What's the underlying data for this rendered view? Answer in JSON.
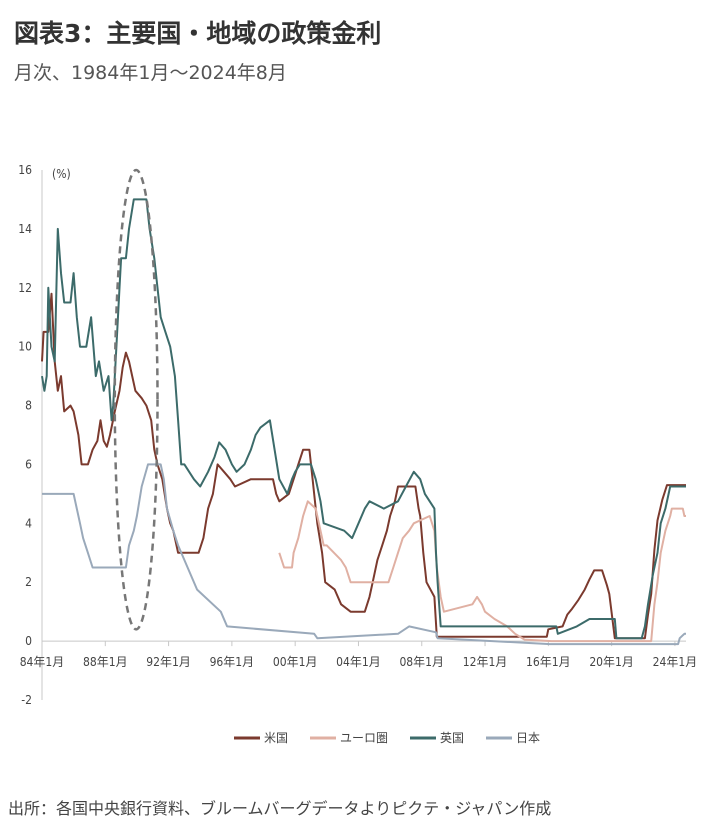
{
  "header": {
    "title": "図表3：主要国・地域の政策金利",
    "subtitle": "月次、1984年1月～2024年8月"
  },
  "footer": {
    "source": "出所：各国中央銀行資料、ブルームバーグデータよりピクテ・ジャパン作成"
  },
  "chart_data": {
    "type": "line",
    "title": "図表3：主要国・地域の政策金利",
    "subtitle": "月次、1984年1月～2024年8月",
    "ylabel": "(%)",
    "ylim": [
      -2,
      16
    ],
    "yticks": [
      -2,
      0,
      2,
      4,
      6,
      8,
      10,
      12,
      14,
      16
    ],
    "xlim": [
      1984.0,
      2024.7
    ],
    "xticks": [
      {
        "x": 1984,
        "label": "84年1月"
      },
      {
        "x": 1988,
        "label": "88年1月"
      },
      {
        "x": 1992,
        "label": "92年1月"
      },
      {
        "x": 1996,
        "label": "96年1月"
      },
      {
        "x": 2000,
        "label": "00年1月"
      },
      {
        "x": 2004,
        "label": "04年1月"
      },
      {
        "x": 2008,
        "label": "08年1月"
      },
      {
        "x": 2012,
        "label": "12年1月"
      },
      {
        "x": 2016,
        "label": "16年1月"
      },
      {
        "x": 2020,
        "label": "20年1月"
      },
      {
        "x": 2024,
        "label": "24年1月"
      }
    ],
    "grid": false,
    "legend_position": "bottom",
    "annotation": "dashed ellipse highlighting 1988-1992",
    "series": [
      {
        "name": "米国",
        "color": "#7b3a2e",
        "points": [
          [
            1984.0,
            9.5
          ],
          [
            1984.1,
            10.5
          ],
          [
            1984.4,
            10.5
          ],
          [
            1984.6,
            11.8
          ],
          [
            1984.8,
            9.5
          ],
          [
            1985.0,
            8.5
          ],
          [
            1985.2,
            9.0
          ],
          [
            1985.4,
            7.8
          ],
          [
            1985.8,
            8.0
          ],
          [
            1986.0,
            7.8
          ],
          [
            1986.3,
            7.0
          ],
          [
            1986.5,
            6.0
          ],
          [
            1986.9,
            6.0
          ],
          [
            1987.2,
            6.5
          ],
          [
            1987.5,
            6.8
          ],
          [
            1987.7,
            7.5
          ],
          [
            1987.9,
            6.8
          ],
          [
            1988.1,
            6.6
          ],
          [
            1988.3,
            7.0
          ],
          [
            1988.6,
            7.8
          ],
          [
            1988.9,
            8.5
          ],
          [
            1989.1,
            9.3
          ],
          [
            1989.3,
            9.8
          ],
          [
            1989.5,
            9.5
          ],
          [
            1989.7,
            9.0
          ],
          [
            1989.9,
            8.5
          ],
          [
            1990.3,
            8.25
          ],
          [
            1990.6,
            8.0
          ],
          [
            1990.9,
            7.5
          ],
          [
            1991.1,
            6.5
          ],
          [
            1991.3,
            6.0
          ],
          [
            1991.6,
            5.5
          ],
          [
            1991.9,
            4.5
          ],
          [
            1992.1,
            4.0
          ],
          [
            1992.3,
            3.75
          ],
          [
            1992.6,
            3.0
          ],
          [
            1993.0,
            3.0
          ],
          [
            1993.9,
            3.0
          ],
          [
            1994.2,
            3.5
          ],
          [
            1994.5,
            4.5
          ],
          [
            1994.8,
            5.0
          ],
          [
            1995.1,
            6.0
          ],
          [
            1995.5,
            5.75
          ],
          [
            1995.9,
            5.5
          ],
          [
            1996.2,
            5.25
          ],
          [
            1997.2,
            5.5
          ],
          [
            1997.6,
            5.5
          ],
          [
            1998.6,
            5.5
          ],
          [
            1998.8,
            5.0
          ],
          [
            1999.0,
            4.75
          ],
          [
            1999.6,
            5.0
          ],
          [
            1999.9,
            5.5
          ],
          [
            2000.2,
            6.0
          ],
          [
            2000.5,
            6.5
          ],
          [
            2000.9,
            6.5
          ],
          [
            2001.1,
            5.5
          ],
          [
            2001.4,
            4.0
          ],
          [
            2001.7,
            3.0
          ],
          [
            2001.9,
            2.0
          ],
          [
            2002.5,
            1.75
          ],
          [
            2002.9,
            1.25
          ],
          [
            2003.5,
            1.0
          ],
          [
            2004.4,
            1.0
          ],
          [
            2004.7,
            1.5
          ],
          [
            2004.9,
            2.0
          ],
          [
            2005.2,
            2.75
          ],
          [
            2005.5,
            3.25
          ],
          [
            2005.8,
            3.75
          ],
          [
            2006.0,
            4.25
          ],
          [
            2006.3,
            4.75
          ],
          [
            2006.5,
            5.25
          ],
          [
            2007.6,
            5.25
          ],
          [
            2007.8,
            4.5
          ],
          [
            2007.9,
            4.25
          ],
          [
            2008.1,
            3.0
          ],
          [
            2008.3,
            2.0
          ],
          [
            2008.8,
            1.5
          ],
          [
            2008.95,
            0.15
          ],
          [
            2015.9,
            0.15
          ],
          [
            2016.0,
            0.4
          ],
          [
            2016.9,
            0.5
          ],
          [
            2017.2,
            0.9
          ],
          [
            2017.5,
            1.1
          ],
          [
            2017.9,
            1.4
          ],
          [
            2018.3,
            1.75
          ],
          [
            2018.6,
            2.1
          ],
          [
            2018.9,
            2.4
          ],
          [
            2019.4,
            2.4
          ],
          [
            2019.7,
            1.9
          ],
          [
            2019.85,
            1.6
          ],
          [
            2020.2,
            0.1
          ],
          [
            2022.1,
            0.1
          ],
          [
            2022.3,
            0.9
          ],
          [
            2022.5,
            1.6
          ],
          [
            2022.7,
            3.1
          ],
          [
            2022.9,
            4.1
          ],
          [
            2023.2,
            4.8
          ],
          [
            2023.5,
            5.3
          ],
          [
            2024.7,
            5.3
          ]
        ]
      },
      {
        "name": "ユーロ圏",
        "color": "#e0b0a3",
        "points": [
          [
            1999.0,
            3.0
          ],
          [
            1999.3,
            2.5
          ],
          [
            1999.8,
            2.5
          ],
          [
            1999.9,
            3.0
          ],
          [
            2000.2,
            3.5
          ],
          [
            2000.5,
            4.25
          ],
          [
            2000.8,
            4.75
          ],
          [
            2001.3,
            4.5
          ],
          [
            2001.6,
            3.75
          ],
          [
            2001.8,
            3.25
          ],
          [
            2002.0,
            3.25
          ],
          [
            2002.9,
            2.75
          ],
          [
            2003.2,
            2.5
          ],
          [
            2003.5,
            2.0
          ],
          [
            2005.9,
            2.0
          ],
          [
            2006.2,
            2.5
          ],
          [
            2006.5,
            3.0
          ],
          [
            2006.8,
            3.5
          ],
          [
            2007.2,
            3.75
          ],
          [
            2007.5,
            4.0
          ],
          [
            2008.5,
            4.25
          ],
          [
            2008.8,
            3.75
          ],
          [
            2008.95,
            2.5
          ],
          [
            2009.2,
            1.5
          ],
          [
            2009.4,
            1.0
          ],
          [
            2011.2,
            1.25
          ],
          [
            2011.5,
            1.5
          ],
          [
            2011.8,
            1.25
          ],
          [
            2012.0,
            1.0
          ],
          [
            2012.6,
            0.75
          ],
          [
            2013.4,
            0.5
          ],
          [
            2013.9,
            0.25
          ],
          [
            2014.5,
            0.05
          ],
          [
            2016.2,
            0.0
          ],
          [
            2022.5,
            0.0
          ],
          [
            2022.7,
            1.25
          ],
          [
            2022.9,
            2.0
          ],
          [
            2023.1,
            3.0
          ],
          [
            2023.4,
            3.75
          ],
          [
            2023.7,
            4.25
          ],
          [
            2023.8,
            4.5
          ],
          [
            2024.5,
            4.5
          ],
          [
            2024.6,
            4.25
          ],
          [
            2024.7,
            4.25
          ]
        ]
      },
      {
        "name": "英国",
        "color": "#3c6b6a",
        "points": [
          [
            1984.0,
            9.0
          ],
          [
            1984.15,
            8.5
          ],
          [
            1984.3,
            9.0
          ],
          [
            1984.4,
            12.0
          ],
          [
            1984.6,
            10.0
          ],
          [
            1984.8,
            9.5
          ],
          [
            1985.0,
            14.0
          ],
          [
            1985.2,
            12.5
          ],
          [
            1985.4,
            11.5
          ],
          [
            1985.8,
            11.5
          ],
          [
            1986.0,
            12.5
          ],
          [
            1986.2,
            11.0
          ],
          [
            1986.4,
            10.0
          ],
          [
            1986.8,
            10.0
          ],
          [
            1987.1,
            11.0
          ],
          [
            1987.4,
            9.0
          ],
          [
            1987.6,
            9.5
          ],
          [
            1987.9,
            8.5
          ],
          [
            1988.2,
            9.0
          ],
          [
            1988.4,
            7.5
          ],
          [
            1988.5,
            8.0
          ],
          [
            1988.7,
            10.0
          ],
          [
            1988.9,
            12.0
          ],
          [
            1989.0,
            13.0
          ],
          [
            1989.3,
            13.0
          ],
          [
            1989.5,
            14.0
          ],
          [
            1989.8,
            15.0
          ],
          [
            1990.6,
            15.0
          ],
          [
            1990.8,
            14.0
          ],
          [
            1991.1,
            13.0
          ],
          [
            1991.3,
            12.0
          ],
          [
            1991.5,
            11.0
          ],
          [
            1991.8,
            10.5
          ],
          [
            1992.1,
            10.0
          ],
          [
            1992.4,
            9.0
          ],
          [
            1992.6,
            7.5
          ],
          [
            1992.8,
            6.0
          ],
          [
            1993.0,
            6.0
          ],
          [
            1993.6,
            5.5
          ],
          [
            1994.0,
            5.25
          ],
          [
            1994.5,
            5.75
          ],
          [
            1994.9,
            6.25
          ],
          [
            1995.2,
            6.75
          ],
          [
            1995.6,
            6.5
          ],
          [
            1996.0,
            6.0
          ],
          [
            1996.3,
            5.75
          ],
          [
            1996.8,
            6.0
          ],
          [
            1997.2,
            6.5
          ],
          [
            1997.5,
            7.0
          ],
          [
            1997.8,
            7.25
          ],
          [
            1998.4,
            7.5
          ],
          [
            1998.7,
            6.5
          ],
          [
            1999.0,
            5.5
          ],
          [
            1999.5,
            5.0
          ],
          [
            1999.8,
            5.5
          ],
          [
            2000.0,
            5.75
          ],
          [
            2000.3,
            6.0
          ],
          [
            2001.0,
            6.0
          ],
          [
            2001.3,
            5.5
          ],
          [
            2001.6,
            4.75
          ],
          [
            2001.8,
            4.0
          ],
          [
            2003.1,
            3.75
          ],
          [
            2003.6,
            3.5
          ],
          [
            2004.0,
            4.0
          ],
          [
            2004.4,
            4.5
          ],
          [
            2004.7,
            4.75
          ],
          [
            2005.6,
            4.5
          ],
          [
            2006.5,
            4.75
          ],
          [
            2007.0,
            5.25
          ],
          [
            2007.5,
            5.75
          ],
          [
            2007.9,
            5.5
          ],
          [
            2008.2,
            5.0
          ],
          [
            2008.8,
            4.5
          ],
          [
            2008.9,
            3.0
          ],
          [
            2009.0,
            2.0
          ],
          [
            2009.2,
            0.5
          ],
          [
            2016.5,
            0.5
          ],
          [
            2016.6,
            0.25
          ],
          [
            2017.8,
            0.5
          ],
          [
            2018.6,
            0.75
          ],
          [
            2020.2,
            0.75
          ],
          [
            2020.3,
            0.1
          ],
          [
            2021.9,
            0.1
          ],
          [
            2022.1,
            0.5
          ],
          [
            2022.3,
            1.25
          ],
          [
            2022.6,
            2.25
          ],
          [
            2022.9,
            3.0
          ],
          [
            2023.1,
            4.0
          ],
          [
            2023.4,
            4.5
          ],
          [
            2023.6,
            5.0
          ],
          [
            2023.7,
            5.25
          ],
          [
            2024.7,
            5.25
          ]
        ]
      },
      {
        "name": "日本",
        "color": "#9aa9ba",
        "points": [
          [
            1984.0,
            5.0
          ],
          [
            1986.0,
            5.0
          ],
          [
            1986.2,
            4.5
          ],
          [
            1986.4,
            4.0
          ],
          [
            1986.6,
            3.5
          ],
          [
            1986.9,
            3.0
          ],
          [
            1987.2,
            2.5
          ],
          [
            1989.3,
            2.5
          ],
          [
            1989.5,
            3.25
          ],
          [
            1989.8,
            3.75
          ],
          [
            1990.0,
            4.25
          ],
          [
            1990.3,
            5.25
          ],
          [
            1990.7,
            6.0
          ],
          [
            1991.5,
            6.0
          ],
          [
            1991.7,
            5.5
          ],
          [
            1991.9,
            4.5
          ],
          [
            1992.3,
            3.75
          ],
          [
            1992.6,
            3.25
          ],
          [
            1993.2,
            2.5
          ],
          [
            1993.8,
            1.75
          ],
          [
            1995.3,
            1.0
          ],
          [
            1995.7,
            0.5
          ],
          [
            2001.2,
            0.25
          ],
          [
            2001.4,
            0.1
          ],
          [
            2006.5,
            0.25
          ],
          [
            2007.2,
            0.5
          ],
          [
            2008.9,
            0.3
          ],
          [
            2009.0,
            0.1
          ],
          [
            2016.1,
            -0.1
          ],
          [
            2024.2,
            -0.1
          ],
          [
            2024.3,
            0.1
          ],
          [
            2024.6,
            0.25
          ],
          [
            2024.7,
            0.25
          ]
        ]
      }
    ]
  }
}
